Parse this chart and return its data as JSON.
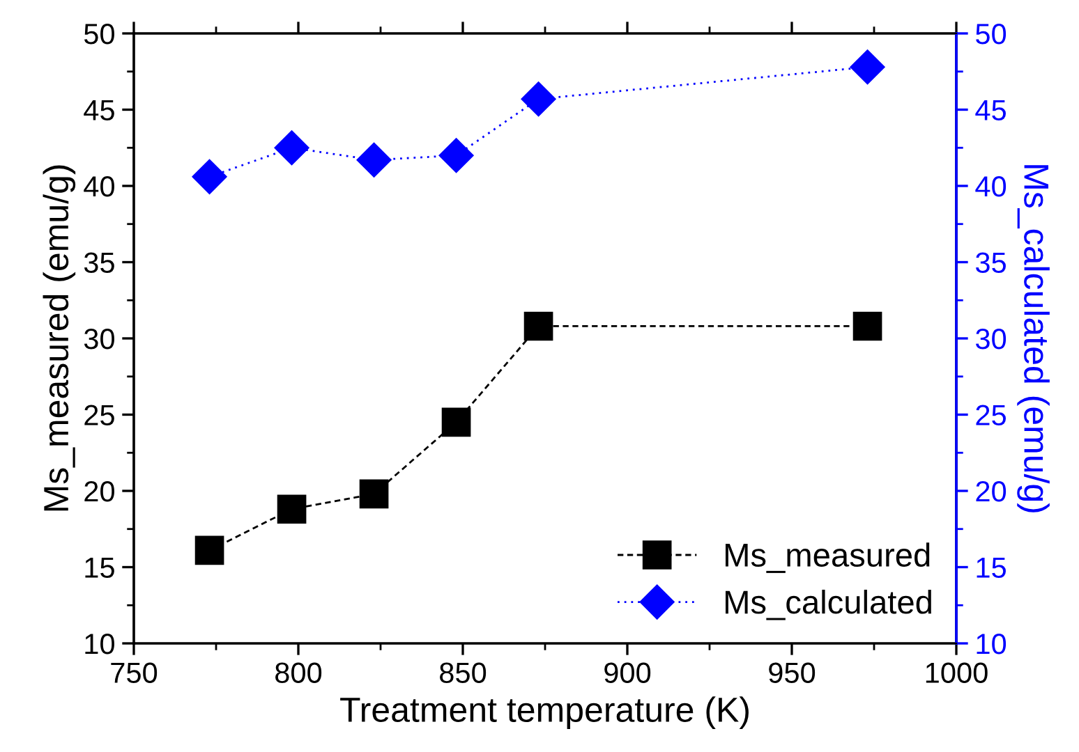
{
  "chart_data": {
    "type": "line",
    "xlabel": "Treatment temperature (K)",
    "ylabel": "Ms_measured (emu/g)",
    "y2label": "Ms_calculated (emu/g)",
    "x": [
      773,
      798,
      823,
      848,
      873,
      973
    ],
    "series": [
      {
        "name": "Ms_measured",
        "color": "#000000",
        "values": [
          16.1,
          18.8,
          19.8,
          24.5,
          30.8,
          30.8
        ],
        "marker": "square",
        "line_style": "dashed"
      },
      {
        "name": "Ms_calculated",
        "color": "#0000ff",
        "values": [
          40.6,
          42.5,
          41.7,
          42.0,
          45.7,
          47.8
        ],
        "marker": "diamond",
        "line_style": "dotted",
        "axis": "y2"
      }
    ],
    "xlim": [
      750,
      1000
    ],
    "xticks": [
      750,
      800,
      850,
      900,
      950,
      1000
    ],
    "ylim": [
      10,
      50
    ],
    "yticks": [
      10,
      15,
      20,
      25,
      30,
      35,
      40,
      45,
      50
    ],
    "y2lim": [
      10,
      50
    ],
    "y2ticks": [
      10,
      15,
      20,
      25,
      30,
      35,
      40,
      45,
      50
    ],
    "grid": false,
    "legend": "bottom right"
  }
}
